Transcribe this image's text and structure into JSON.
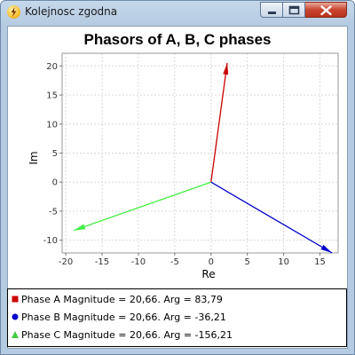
{
  "window": {
    "title": "Kolejnosc zgodna",
    "app_icon": "lightning-icon",
    "buttons": {
      "minimize": "minimize-icon",
      "maximize": "maximize-icon",
      "close": "close-icon"
    }
  },
  "chart_data": {
    "type": "line",
    "title": "Phasors of A, B, C phases",
    "xlabel": "Re",
    "ylabel": "Im",
    "xlim": [
      -20.5,
      17.5
    ],
    "ylim": [
      -12.2,
      22.2
    ],
    "xticks": [
      -20,
      -15,
      -10,
      -5,
      0,
      5,
      10,
      15
    ],
    "yticks": [
      -10,
      -5,
      0,
      5,
      10,
      15,
      20
    ],
    "grid": true,
    "legend_position": "bottom",
    "series": [
      {
        "name": "Phase A Magnitude = 20,66. Arg = 83,79",
        "color": "#cc0000",
        "marker": "square",
        "points": [
          [
            0,
            0
          ],
          [
            2.23,
            20.54
          ]
        ]
      },
      {
        "name": "Phase B Magnitude = 20,66. Arg = -36,21",
        "color": "#0000cc",
        "marker": "circle",
        "points": [
          [
            0,
            0
          ],
          [
            16.67,
            -12.2
          ]
        ]
      },
      {
        "name": "Phase C Magnitude = 20,66. Arg = -156,21",
        "color": "#44ee44",
        "marker": "triangle",
        "points": [
          [
            0,
            0
          ],
          [
            -18.91,
            -8.33
          ]
        ]
      }
    ]
  },
  "legend": {
    "items": [
      "Phase A Magnitude = 20,66. Arg = 83,79",
      "Phase B Magnitude = 20,66. Arg = -36,21",
      "Phase C Magnitude = 20,66. Arg = -156,21"
    ]
  }
}
